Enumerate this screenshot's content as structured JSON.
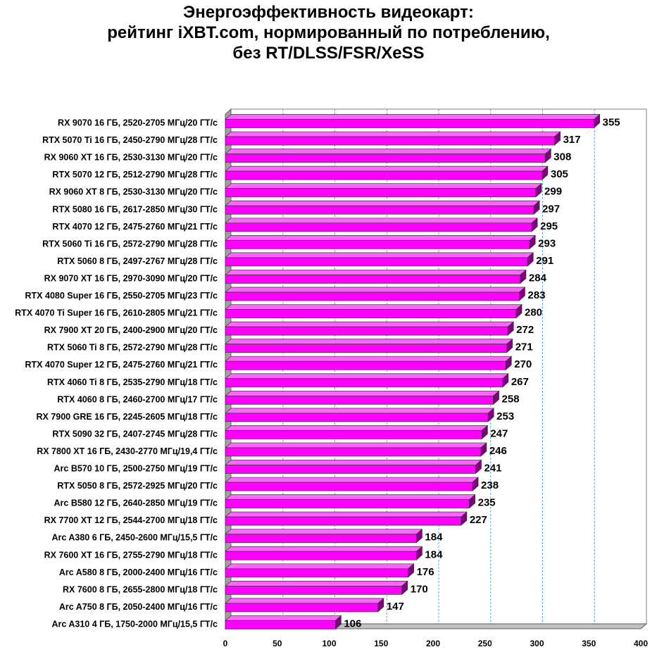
{
  "chart_data": {
    "type": "bar",
    "orientation": "horizontal",
    "title_lines": [
      "Энергоэффективность видеокарт:",
      "рейтинг iXBT.com, нормированный по потреблению,",
      "без RT/DLSS/FSR/XeSS"
    ],
    "xlabel": "",
    "ylabel": "",
    "xlim": [
      0,
      400
    ],
    "xticks": [
      0,
      50,
      100,
      150,
      200,
      250,
      300,
      350,
      400
    ],
    "grid": true,
    "legend": "none",
    "colors": {
      "bar_front": "#ff00ff",
      "bar_top": "#ff66ff",
      "bar_side": "#800080",
      "bar_outline": "#333333",
      "grid": "#55a5e8",
      "wall": "#ffffff",
      "floor": "#c0c0c0"
    },
    "categories": [
      "RX 9070 16 ГБ, 2520-2705 МГц/20 ГТ/с",
      "RTX 5070 Ti 16 ГБ, 2450-2790 МГц/28 ГТ/с",
      "RX 9060 XT 16 ГБ, 2530-3130 МГц/20 ГТ/с",
      "RTX 5070 12 ГБ, 2512-2790 МГц/28 ГТ/с",
      "RX 9060 XT 8 ГБ, 2530-3130 МГц/20 ГТ/с",
      "RTX 5080 16 ГБ, 2617-2850 МГц/30 ГТ/с",
      "RTX 4070 12 ГБ, 2475-2760 МГц/21 ГТ/с",
      "RTX 5060 Ti 16 ГБ, 2572-2790 МГц/28 ГТ/с",
      "RTX 5060 8 ГБ, 2497-2767 МГц/28 ГТ/с",
      "RX 9070 XT 16 ГБ, 2970-3090 МГц/20 ГТ/с",
      "RTX 4080 Super 16 ГБ, 2550-2705 МГц/23 ГТ/с",
      "RTX 4070 Ti Super 16 ГБ, 2610-2805 МГц/21 ГТ/с",
      "RX 7900 XT 20 ГБ, 2400-2900 МГц/20 ГТ/с",
      "RTX 5060 Ti 8 ГБ, 2572-2790 МГц/28 ГТ/с",
      "RTX 4070 Super 12 ГБ, 2475-2760 МГц/21 ГТ/с",
      "RTX 4060 Ti 8 ГБ, 2535-2790 МГц/18 ГТ/с",
      "RTX 4060 8 ГБ, 2460-2700 МГц/17 ГТ/с",
      "RX 7900 GRE 16 ГБ, 2245-2605 МГц/18 ГТ/с",
      "RTX 5090 32 ГБ, 2407-2745 МГц/28 ГТ/с",
      "RX 7800 XT 16 ГБ, 2430-2770 МГц/19,4 ГТ/с",
      "Arc B570 10 ГБ, 2500-2750 МГц/19 ГТ/с",
      "RTX 5050 8 ГБ, 2572-2925 МГц/20 ГТ/с",
      "Arc B580 12 ГБ, 2640-2850 МГц/19 ГТ/с",
      "RX 7700 XT 12 ГБ, 2544-2700 МГц/18 ГТ/с",
      "Arc A380 6 ГБ, 2450-2600 МГц/15,5 ГТ/с",
      "RX 7600 XT 16 ГБ, 2755-2790 МГц/18 ГТ/с",
      "Arc A580 8 ГБ, 2000-2400 МГц/16 ГТ/с",
      "RX 7600 8 ГБ, 2655-2800 МГц/18 ГТ/с",
      "Arc A750 8 ГБ, 2050-2400 МГц/16 ГТ/с",
      "Arc A310 4 ГБ, 1750-2000 МГц/15,5 ГТ/с"
    ],
    "values": [
      355,
      317,
      308,
      305,
      299,
      297,
      295,
      293,
      291,
      284,
      283,
      280,
      272,
      271,
      270,
      267,
      258,
      253,
      247,
      246,
      241,
      238,
      235,
      227,
      184,
      184,
      176,
      170,
      147,
      106
    ]
  }
}
